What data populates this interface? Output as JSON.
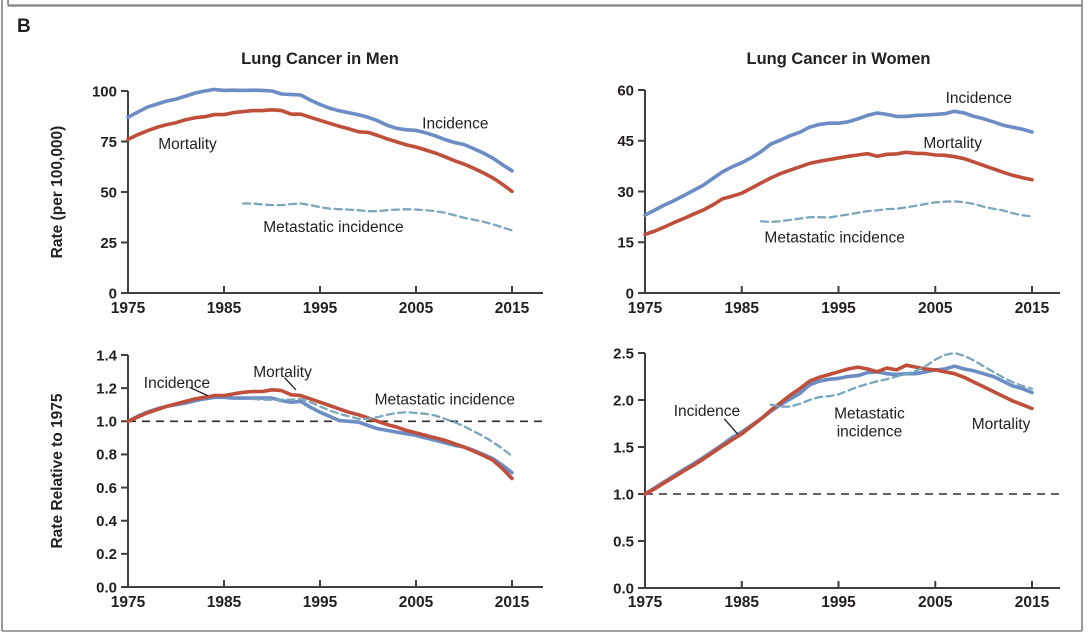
{
  "figure": {
    "panel_label": "B"
  },
  "colors": {
    "incidence": "#6b8cc4",
    "mortality": "#bf4f3a",
    "metastatic": "#7ba7bd",
    "axis": "#3f3f3f",
    "text": "#231f20",
    "ref_line": "#2e2e2e",
    "border": "#808080"
  },
  "chart_data": [
    {
      "id": "men_rate",
      "type": "line",
      "title": "Lung Cancer in Men",
      "ylabel": "Rate (per 100,000)",
      "xlim": [
        1975,
        2015
      ],
      "ylim": [
        0,
        100
      ],
      "yticks": [
        0,
        25,
        50,
        75,
        100
      ],
      "ytick_labels": [
        "0",
        "25",
        "50",
        "75",
        "100"
      ],
      "xticks": [
        1975,
        1985,
        1995,
        2005,
        2015
      ],
      "ref_line": null,
      "series": [
        {
          "name": "Incidence",
          "role": "incidence",
          "start_year": 1975,
          "values": [
            87,
            89.5,
            92,
            93.5,
            95,
            96,
            97.5,
            99,
            100,
            100.8,
            100.3,
            100.4,
            100.3,
            100.4,
            100.3,
            100,
            98.5,
            98.2,
            98,
            95.5,
            93.3,
            91.5,
            90.2,
            89.2,
            88.2,
            87,
            85.3,
            83,
            81.5,
            80.8,
            80.5,
            79.3,
            77.8,
            76,
            74.5,
            73.5,
            71.5,
            69.3,
            66.8,
            63.5,
            60.5
          ]
        },
        {
          "name": "Mortality",
          "role": "mortality",
          "start_year": 1975,
          "values": [
            76,
            78.3,
            80.3,
            82,
            83.3,
            84.3,
            85.8,
            86.8,
            87.3,
            88.3,
            88.3,
            89.3,
            89.8,
            90.3,
            90.3,
            90.7,
            90.3,
            88.5,
            88.5,
            87,
            85.5,
            84,
            82.5,
            81.3,
            79.8,
            79.5,
            78,
            76.3,
            74.8,
            73.3,
            72.3,
            70.8,
            69.3,
            67.5,
            65.5,
            63.8,
            61.8,
            59.5,
            57,
            53.8,
            50.3
          ]
        },
        {
          "name": "Metastatic incidence",
          "role": "metastatic",
          "start_year": 1987,
          "values": [
            44.3,
            44.3,
            43.8,
            43.5,
            43.5,
            44,
            44.3,
            43.5,
            42.5,
            41.8,
            41.5,
            41.3,
            41,
            40.5,
            40.5,
            41,
            41.3,
            41.5,
            41.3,
            41,
            40.5,
            39.8,
            38.5,
            37.3,
            36.3,
            35.3,
            34,
            32.5,
            31
          ]
        }
      ],
      "annotations": [
        {
          "lines": [
            "Incidence"
          ],
          "x": 2009.1,
          "y": 84,
          "anchor": "middle"
        },
        {
          "lines": [
            "Mortality"
          ],
          "x": 1981.2,
          "y": 74,
          "anchor": "middle"
        },
        {
          "lines": [
            "Metastatic incidence"
          ],
          "x": 1996.4,
          "y": 33,
          "anchor": "middle"
        }
      ]
    },
    {
      "id": "women_rate",
      "type": "line",
      "title": "Lung Cancer in Women",
      "ylabel": null,
      "xlim": [
        1975,
        2015
      ],
      "ylim": [
        0,
        60
      ],
      "yticks": [
        0,
        15,
        30,
        45,
        60
      ],
      "ytick_labels": [
        "0",
        "15",
        "30",
        "45",
        "60"
      ],
      "xticks": [
        1975,
        1985,
        1995,
        2005,
        2015
      ],
      "ref_line": null,
      "series": [
        {
          "name": "Incidence",
          "role": "incidence",
          "start_year": 1975,
          "values": [
            23,
            24.5,
            26,
            27.3,
            28.8,
            30.3,
            31.8,
            33.8,
            35.8,
            37.3,
            38.5,
            40,
            41.8,
            44,
            45.2,
            46.5,
            47.5,
            49,
            49.8,
            50.2,
            50.2,
            50.6,
            51.5,
            52.5,
            53.2,
            52.8,
            52.2,
            52.2,
            52.5,
            52.6,
            52.8,
            53,
            53.7,
            53.2,
            52.2,
            51.5,
            50.6,
            49.6,
            49,
            48.4,
            47.6
          ]
        },
        {
          "name": "Mortality",
          "role": "mortality",
          "start_year": 1975,
          "values": [
            17.3,
            18.3,
            19.5,
            20.8,
            22,
            23.3,
            24.5,
            26,
            27.8,
            28.6,
            29.5,
            31,
            32.5,
            34,
            35.3,
            36.3,
            37.3,
            38.3,
            38.9,
            39.4,
            39.9,
            40.4,
            40.8,
            41.2,
            40.4,
            41,
            41.1,
            41.6,
            41.3,
            41.2,
            40.8,
            40.7,
            40.3,
            39.7,
            38.7,
            37.7,
            36.7,
            35.7,
            34.8,
            34.1,
            33.5
          ]
        },
        {
          "name": "Metastatic incidence",
          "role": "metastatic",
          "start_year": 1987,
          "values": [
            21.2,
            21,
            21.2,
            21.6,
            22,
            22.4,
            22.4,
            22.3,
            22.8,
            23.2,
            23.7,
            24.2,
            24.4,
            24.8,
            24.9,
            25.3,
            25.8,
            26.3,
            26.8,
            27,
            27.1,
            26.8,
            26.3,
            25.5,
            24.9,
            24.4,
            23.6,
            23,
            22.6
          ]
        }
      ],
      "annotations": [
        {
          "lines": [
            "Incidence"
          ],
          "x": 2009.5,
          "y": 57.8,
          "anchor": "middle"
        },
        {
          "lines": [
            "Mortality"
          ],
          "x": 2006.8,
          "y": 44.4,
          "anchor": "middle"
        },
        {
          "lines": [
            "Metastatic incidence"
          ],
          "x": 1994.6,
          "y": 16.6,
          "anchor": "middle"
        }
      ]
    },
    {
      "id": "men_rel",
      "type": "line",
      "title": null,
      "ylabel": "Rate Relative to 1975",
      "xlim": [
        1975,
        2015
      ],
      "ylim": [
        0,
        1.4
      ],
      "yticks": [
        0,
        0.2,
        0.4,
        0.6,
        0.8,
        1.0,
        1.2,
        1.4
      ],
      "ytick_labels": [
        "0.0",
        "0.2",
        "0.4",
        "0.6",
        "0.8",
        "1.0",
        "1.2",
        "1.4"
      ],
      "xticks": [
        1975,
        1985,
        1995,
        2005,
        2015
      ],
      "ref_line": 1.0,
      "series": [
        {
          "name": "Incidence",
          "role": "incidence",
          "start_year": 1975,
          "values": [
            1.0,
            1.03,
            1.055,
            1.075,
            1.09,
            1.1,
            1.11,
            1.125,
            1.135,
            1.145,
            1.145,
            1.14,
            1.14,
            1.14,
            1.14,
            1.14,
            1.125,
            1.115,
            1.12,
            1.085,
            1.055,
            1.03,
            1.005,
            1.0,
            0.995,
            0.975,
            0.955,
            0.945,
            0.935,
            0.925,
            0.915,
            0.9,
            0.885,
            0.87,
            0.855,
            0.845,
            0.825,
            0.8,
            0.775,
            0.735,
            0.69
          ]
        },
        {
          "name": "Mortality",
          "role": "mortality",
          "start_year": 1975,
          "values": [
            1.0,
            1.025,
            1.05,
            1.07,
            1.09,
            1.105,
            1.12,
            1.135,
            1.145,
            1.155,
            1.155,
            1.165,
            1.175,
            1.18,
            1.18,
            1.19,
            1.185,
            1.16,
            1.155,
            1.135,
            1.115,
            1.095,
            1.075,
            1.055,
            1.04,
            1.02,
            1.0,
            0.98,
            0.965,
            0.945,
            0.93,
            0.915,
            0.9,
            0.885,
            0.865,
            0.845,
            0.82,
            0.795,
            0.765,
            0.715,
            0.655
          ]
        },
        {
          "name": "Metastatic incidence",
          "role": "metastatic",
          "start_year": 1988,
          "values": [
            1.135,
            1.13,
            1.13,
            1.13,
            1.13,
            1.135,
            1.115,
            1.09,
            1.065,
            1.045,
            1.03,
            1.015,
            1.015,
            1.025,
            1.04,
            1.05,
            1.055,
            1.05,
            1.045,
            1.035,
            1.015,
            0.995,
            0.97,
            0.94,
            0.91,
            0.875,
            0.835,
            0.79
          ]
        }
      ],
      "annotations": [
        {
          "lines": [
            "Incidence"
          ],
          "x": 1980.1,
          "y": 1.235,
          "anchor": "middle",
          "leader": [
            1981.4,
            1.205,
            1983.3,
            1.155
          ]
        },
        {
          "lines": [
            "Mortality"
          ],
          "x": 1991.1,
          "y": 1.3,
          "anchor": "middle",
          "leader": [
            1991.3,
            1.263,
            1992.5,
            1.19
          ]
        },
        {
          "lines": [
            "Metastatic incidence"
          ],
          "x": 2008,
          "y": 1.135,
          "anchor": "middle"
        }
      ]
    },
    {
      "id": "women_rel",
      "type": "line",
      "title": null,
      "ylabel": null,
      "xlim": [
        1975,
        2015
      ],
      "ylim": [
        0,
        2.5
      ],
      "yticks": [
        0,
        0.5,
        1.0,
        1.5,
        2.0,
        2.5
      ],
      "ytick_labels": [
        "0.0",
        "0.5",
        "1.0",
        "1.5",
        "2.0",
        "2.5"
      ],
      "xticks": [
        1975,
        1985,
        1995,
        2005,
        2015
      ],
      "ref_line": 1.0,
      "series": [
        {
          "name": "Incidence",
          "role": "incidence",
          "start_year": 1975,
          "values": [
            1.0,
            1.065,
            1.13,
            1.195,
            1.26,
            1.32,
            1.385,
            1.455,
            1.525,
            1.6,
            1.66,
            1.73,
            1.8,
            1.88,
            1.95,
            2.01,
            2.07,
            2.16,
            2.2,
            2.22,
            2.23,
            2.25,
            2.26,
            2.29,
            2.3,
            2.28,
            2.27,
            2.28,
            2.28,
            2.3,
            2.32,
            2.33,
            2.36,
            2.33,
            2.31,
            2.28,
            2.25,
            2.2,
            2.15,
            2.12,
            2.08
          ]
        },
        {
          "name": "Mortality",
          "role": "mortality",
          "start_year": 1975,
          "values": [
            1.0,
            1.055,
            1.12,
            1.18,
            1.245,
            1.305,
            1.37,
            1.44,
            1.51,
            1.575,
            1.64,
            1.72,
            1.8,
            1.89,
            1.97,
            2.05,
            2.12,
            2.2,
            2.24,
            2.27,
            2.3,
            2.33,
            2.35,
            2.33,
            2.3,
            2.34,
            2.32,
            2.37,
            2.35,
            2.33,
            2.32,
            2.3,
            2.28,
            2.24,
            2.19,
            2.14,
            2.09,
            2.04,
            1.99,
            1.95,
            1.91
          ]
        },
        {
          "name": "Metastatic incidence",
          "role": "metastatic",
          "start_year": 1988,
          "values": [
            1.95,
            1.93,
            1.93,
            1.96,
            2.0,
            2.03,
            2.04,
            2.06,
            2.1,
            2.14,
            2.17,
            2.2,
            2.22,
            2.25,
            2.28,
            2.31,
            2.36,
            2.43,
            2.48,
            2.5,
            2.47,
            2.42,
            2.36,
            2.3,
            2.24,
            2.19,
            2.15,
            2.12
          ]
        }
      ],
      "annotations": [
        {
          "lines": [
            "Incidence"
          ],
          "x": 1981.4,
          "y": 1.89,
          "anchor": "middle",
          "leader": [
            1983.2,
            1.8,
            1984.6,
            1.635
          ]
        },
        {
          "lines": [
            "Metastatic",
            "incidence"
          ],
          "x": 1998.2,
          "y": 1.86,
          "anchor": "middle"
        },
        {
          "lines": [
            "Mortality"
          ],
          "x": 2011.8,
          "y": 1.75,
          "anchor": "middle"
        }
      ]
    }
  ]
}
